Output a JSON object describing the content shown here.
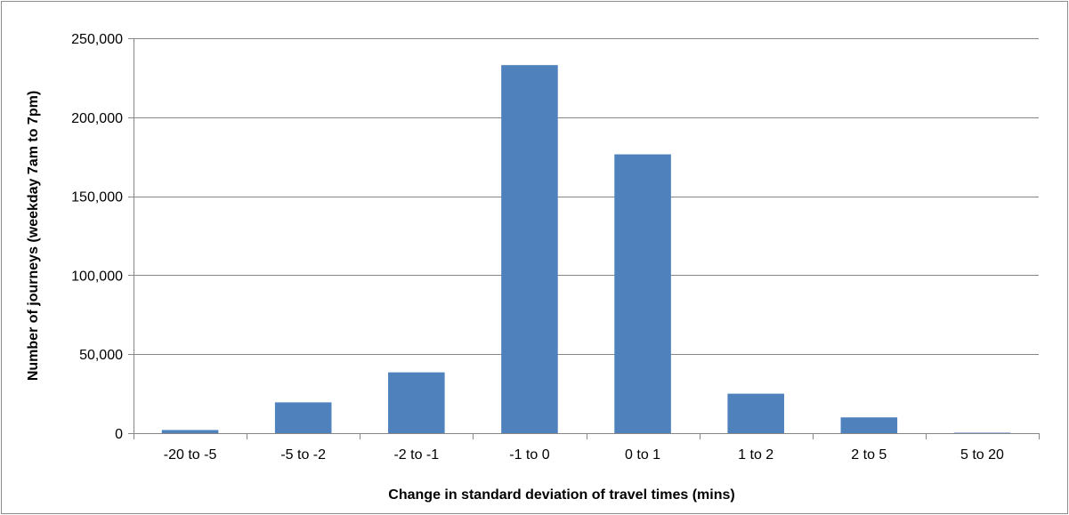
{
  "chart_data": {
    "type": "bar",
    "title": "",
    "xlabel": "Change in standard deviation of travel times (mins)",
    "ylabel": "Number of journeys (weekday 7am to 7pm)",
    "categories": [
      "-20 to -5",
      "-5 to -2",
      "-2 to -1",
      "-1 to 0",
      "0 to 1",
      "1 to 2",
      "2 to 5",
      "5 to 20"
    ],
    "values": [
      2000,
      19500,
      38500,
      233000,
      176500,
      25000,
      10000,
      300
    ],
    "ylim": [
      0,
      250000
    ],
    "yticks": [
      0,
      50000,
      100000,
      150000,
      200000,
      250000
    ],
    "ytick_labels": [
      "0",
      "50,000",
      "100,000",
      "150,000",
      "200,000",
      "250,000"
    ],
    "grid": true,
    "legend": "none",
    "bar_color": "#4f81bd",
    "grid_color": "#868686"
  }
}
